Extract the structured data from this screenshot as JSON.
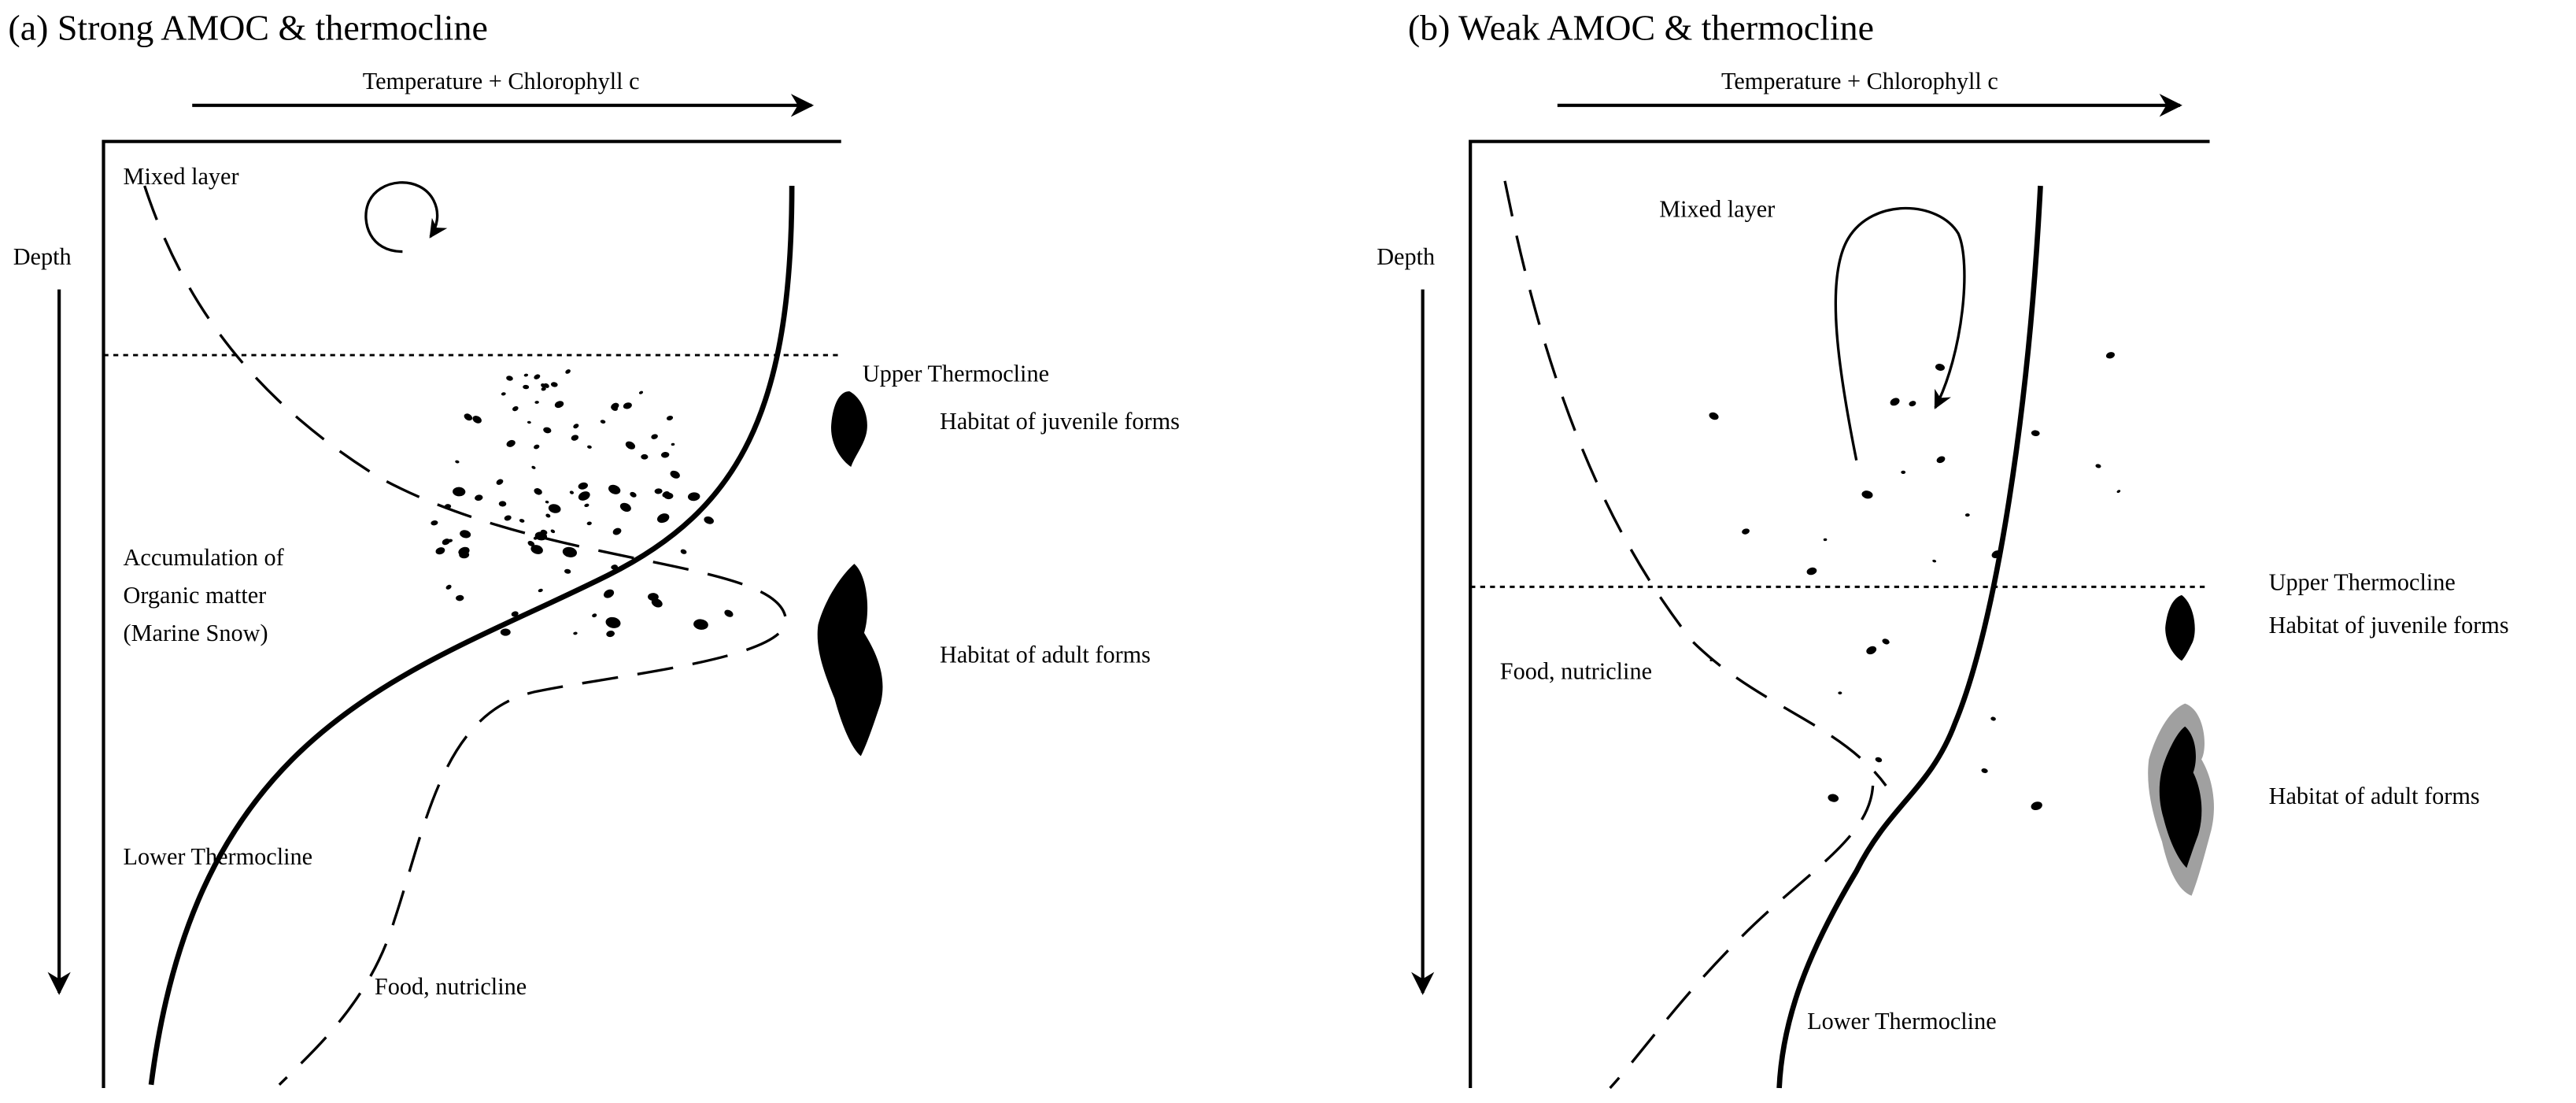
{
  "panels": [
    {
      "title": "(a) Strong AMOC & thermocline",
      "x_axis_label": "Temperature + Chlorophyll c",
      "y_axis_label": "Depth",
      "labels": {
        "mixed_layer": "Mixed layer",
        "upper_thermocline": "Upper Thermocline",
        "juvenile_habitat": "Habitat of juvenile forms",
        "adult_habitat": "Habitat of adult forms",
        "accumulation_line1": "Accumulation of",
        "accumulation_line2": "Organic matter",
        "accumulation_line3": "(Marine Snow)",
        "lower_thermocline": "Lower Thermocline",
        "nutricline": "Food, nutricline"
      },
      "circulation": "small mixing loop",
      "particle_density": "high"
    },
    {
      "title": "(b) Weak AMOC & thermocline",
      "x_axis_label": "Temperature + Chlorophyll c",
      "y_axis_label": "Depth",
      "labels": {
        "mixed_layer": "Mixed layer",
        "upper_thermocline": "Upper Thermocline",
        "juvenile_habitat": "Habitat of juvenile forms",
        "adult_habitat": "Habitat of adult forms",
        "nutricline": "Food, nutricline",
        "lower_thermocline": "Lower Thermocline"
      },
      "circulation": "deep mixing loop",
      "particle_density": "low"
    }
  ],
  "colors": {
    "ink": "#000000",
    "halo": "#a0a0a0"
  }
}
